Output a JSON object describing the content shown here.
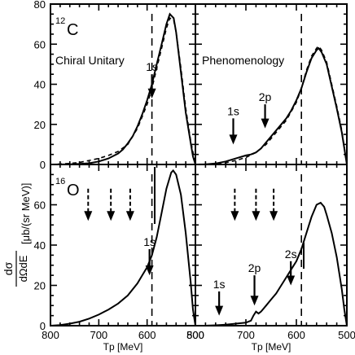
{
  "ylabel": "dσ/dΩdE [μb/(sr MeV)]",
  "ylabel_num": "dσ",
  "ylabel_den": "dΩdE",
  "ylabel_unit": "[μb/(sr MeV)]",
  "chart_data": [
    {
      "type": "line",
      "panel": "top-left",
      "nucleus": "12C",
      "mass_number": "12",
      "element": "C",
      "title": "Chiral Unitary",
      "xlabel": "",
      "xlim": [
        800,
        500
      ],
      "ylim": [
        0,
        80
      ],
      "ytick_labels": [
        "0",
        "20",
        "40",
        "60",
        "80"
      ],
      "vline_x": 590,
      "series": [
        {
          "style": "solid",
          "x": [
            800,
            760,
            740,
            720,
            700,
            680,
            660,
            650,
            640,
            630,
            620,
            610,
            600,
            590,
            580,
            570,
            560,
            553,
            545,
            540,
            530,
            520,
            510,
            505,
            500
          ],
          "y": [
            0,
            0.1,
            0.3,
            0.6,
            1.5,
            3,
            5.5,
            7.5,
            10.5,
            14,
            19,
            25,
            32,
            40,
            50,
            60,
            70,
            75,
            73,
            66,
            46,
            26,
            11,
            4,
            0
          ]
        },
        {
          "style": "dashed",
          "x": [
            800,
            760,
            740,
            720,
            700,
            680,
            660,
            640,
            620,
            600,
            590,
            580,
            570,
            560,
            553,
            545,
            540,
            530,
            520,
            510,
            500
          ],
          "y": [
            0,
            0.5,
            1,
            2,
            3,
            4.5,
            6.5,
            10,
            18,
            30,
            38,
            48,
            58,
            68,
            73,
            72,
            66,
            48,
            28,
            12,
            0
          ]
        }
      ],
      "annotations": [
        {
          "label": "1s",
          "x": 590,
          "y_tip": 33,
          "y_tail": 45,
          "style": "solid"
        }
      ]
    },
    {
      "type": "line",
      "panel": "top-right",
      "nucleus": "12C",
      "title": "Phenomenology",
      "xlabel": "",
      "xlim": [
        800,
        500
      ],
      "ylim": [
        0,
        80
      ],
      "vline_x": 590,
      "series": [
        {
          "style": "solid",
          "x": [
            800,
            780,
            760,
            740,
            720,
            700,
            690,
            680,
            670,
            660,
            650,
            640,
            630,
            620,
            610,
            600,
            590,
            580,
            570,
            560,
            556,
            550,
            540,
            530,
            520,
            510,
            505,
            500
          ],
          "y": [
            0,
            0.1,
            0.5,
            1.5,
            3,
            4.5,
            5,
            6,
            8,
            11,
            14,
            17,
            20,
            23,
            27,
            32,
            38,
            46,
            53,
            57,
            58,
            56,
            50,
            39,
            28,
            16,
            8,
            0
          ]
        },
        {
          "style": "dashed",
          "x": [
            800,
            760,
            740,
            720,
            700,
            680,
            660,
            640,
            620,
            600,
            590,
            580,
            570,
            560,
            556,
            550,
            540,
            530,
            520,
            510,
            500
          ],
          "y": [
            0,
            0.2,
            0.8,
            2,
            3.5,
            6,
            10,
            16,
            22,
            31,
            38,
            47,
            54,
            58,
            59,
            57,
            51,
            40,
            29,
            17,
            0
          ]
        }
      ],
      "annotations": [
        {
          "label": "1s",
          "x": 725,
          "y_tip": 10,
          "y_tail": 23,
          "style": "solid"
        },
        {
          "label": "2p",
          "x": 662,
          "y_tip": 18,
          "y_tail": 30,
          "style": "solid"
        }
      ]
    },
    {
      "type": "line",
      "panel": "bottom-left",
      "nucleus": "16O",
      "mass_number": "16",
      "element": "O",
      "title": "",
      "xlabel": "Tp [MeV]",
      "xlim": [
        800,
        500
      ],
      "ylim": [
        0,
        80
      ],
      "xtick_labels": [
        "800",
        "700",
        "600",
        "500"
      ],
      "ytick_labels": [
        "0",
        "20",
        "40",
        "60"
      ],
      "vline_x": 590,
      "series": [
        {
          "style": "solid",
          "x": [
            800,
            780,
            760,
            740,
            720,
            700,
            680,
            660,
            640,
            620,
            610,
            600,
            590,
            580,
            570,
            560,
            550,
            546,
            540,
            530,
            520,
            510,
            505,
            500
          ],
          "y": [
            0,
            0.3,
            1,
            2,
            3.5,
            5.5,
            8,
            11,
            15,
            21,
            25,
            29,
            35,
            44,
            56,
            68,
            76,
            77,
            75,
            65,
            46,
            22,
            8,
            0
          ]
        }
      ],
      "annotations": [
        {
          "label": "",
          "x": 722,
          "y_tip": 52,
          "y_tail": 68,
          "style": "dashed"
        },
        {
          "label": "",
          "x": 675,
          "y_tip": 52,
          "y_tail": 68,
          "style": "dashed"
        },
        {
          "label": "",
          "x": 635,
          "y_tip": 52,
          "y_tail": 68,
          "style": "dashed"
        },
        {
          "label": "1s",
          "x": 595,
          "y_tip": 25,
          "y_tail": 38,
          "style": "solid"
        }
      ]
    },
    {
      "type": "line",
      "panel": "bottom-right",
      "nucleus": "16O",
      "title": "",
      "xlabel": "Tp [MeV]",
      "xlim": [
        800,
        500
      ],
      "ylim": [
        0,
        80
      ],
      "xtick_labels": [
        "800",
        "700",
        "600",
        "500"
      ],
      "vline_x": 590,
      "series": [
        {
          "style": "solid",
          "x": [
            800,
            780,
            760,
            740,
            720,
            700,
            690,
            685,
            680,
            675,
            670,
            660,
            650,
            640,
            630,
            620,
            610,
            600,
            590,
            580,
            570,
            560,
            552,
            545,
            540,
            530,
            520,
            510,
            505,
            500
          ],
          "y": [
            0,
            0,
            0.2,
            0.5,
            1,
            1.5,
            2.5,
            5,
            7,
            6,
            7,
            10,
            13,
            16,
            20,
            24,
            28,
            32,
            38,
            46,
            54,
            60,
            61,
            59,
            55,
            46,
            34,
            18,
            8,
            0
          ]
        }
      ],
      "annotations": [
        {
          "label": "",
          "x": 722,
          "y_tip": 52,
          "y_tail": 68,
          "style": "dashed"
        },
        {
          "label": "",
          "x": 680,
          "y_tip": 52,
          "y_tail": 68,
          "style": "dashed"
        },
        {
          "label": "",
          "x": 645,
          "y_tip": 52,
          "y_tail": 68,
          "style": "dashed"
        },
        {
          "label": "1s",
          "x": 753,
          "y_tip": 5,
          "y_tail": 17,
          "style": "solid"
        },
        {
          "label": "2p",
          "x": 683,
          "y_tip": 10,
          "y_tail": 25,
          "style": "solid"
        },
        {
          "label": "2s",
          "x": 611,
          "y_tip": 20,
          "y_tail": 32,
          "style": "solid"
        }
      ]
    }
  ]
}
